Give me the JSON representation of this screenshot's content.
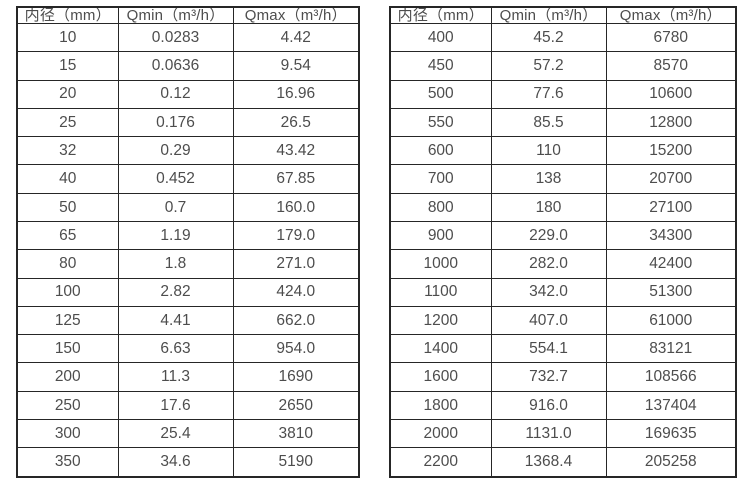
{
  "colors": {
    "background": "#ffffff",
    "border": "#262626",
    "text": "#4d4d4d"
  },
  "tables": [
    {
      "name": "flow-table-small-diameters",
      "headers": [
        "内径（mm）",
        "Qmin（m³/h）",
        "Qmax（m³/h）"
      ],
      "rows": [
        [
          "10",
          "0.0283",
          "4.42"
        ],
        [
          "15",
          "0.0636",
          "9.54"
        ],
        [
          "20",
          "0.12",
          "16.96"
        ],
        [
          "25",
          "0.176",
          "26.5"
        ],
        [
          "32",
          "0.29",
          "43.42"
        ],
        [
          "40",
          "0.452",
          "67.85"
        ],
        [
          "50",
          "0.7",
          "160.0"
        ],
        [
          "65",
          "1.19",
          "179.0"
        ],
        [
          "80",
          "1.8",
          "271.0"
        ],
        [
          "100",
          "2.82",
          "424.0"
        ],
        [
          "125",
          "4.41",
          "662.0"
        ],
        [
          "150",
          "6.63",
          "954.0"
        ],
        [
          "200",
          "11.3",
          "1690"
        ],
        [
          "250",
          "17.6",
          "2650"
        ],
        [
          "300",
          "25.4",
          "3810"
        ],
        [
          "350",
          "34.6",
          "5190"
        ]
      ]
    },
    {
      "name": "flow-table-large-diameters",
      "headers": [
        "内径（mm）",
        "Qmin（m³/h）",
        "Qmax（m³/h）"
      ],
      "rows": [
        [
          "400",
          "45.2",
          "6780"
        ],
        [
          "450",
          "57.2",
          "8570"
        ],
        [
          "500",
          "77.6",
          "10600"
        ],
        [
          "550",
          "85.5",
          "12800"
        ],
        [
          "600",
          "110",
          "15200"
        ],
        [
          "700",
          "138",
          "20700"
        ],
        [
          "800",
          "180",
          "27100"
        ],
        [
          "900",
          "229.0",
          "34300"
        ],
        [
          "1000",
          "282.0",
          "42400"
        ],
        [
          "1100",
          "342.0",
          "51300"
        ],
        [
          "1200",
          "407.0",
          "61000"
        ],
        [
          "1400",
          "554.1",
          "83121"
        ],
        [
          "1600",
          "732.7",
          "108566"
        ],
        [
          "1800",
          "916.0",
          "137404"
        ],
        [
          "2000",
          "1131.0",
          "169635"
        ],
        [
          "2200",
          "1368.4",
          "205258"
        ]
      ]
    }
  ]
}
